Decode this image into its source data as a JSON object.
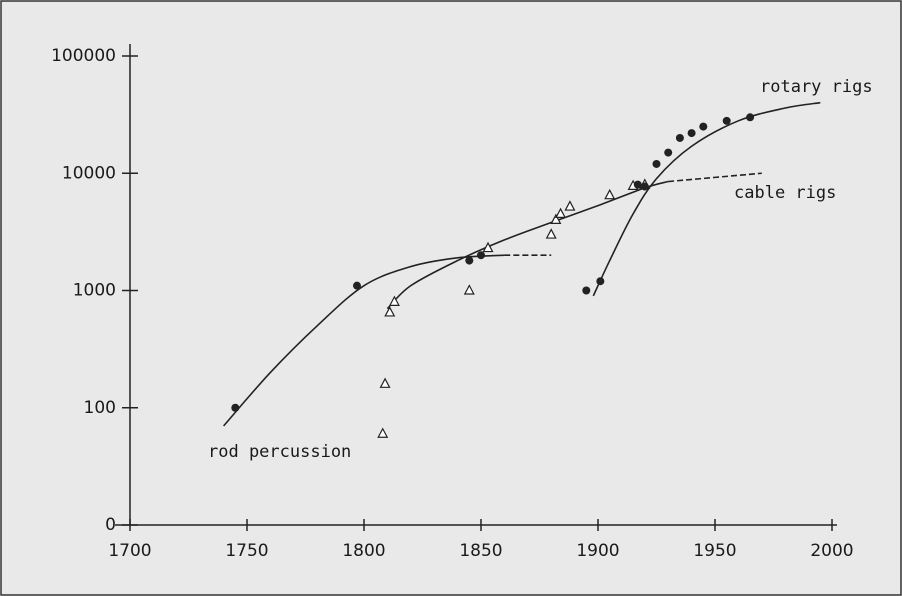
{
  "chart_data": {
    "type": "scatter",
    "xlim": [
      1700,
      2000
    ],
    "xticks": [
      1700,
      1750,
      1800,
      1850,
      1900,
      1950,
      2000
    ],
    "ylim": [
      10,
      100000
    ],
    "log_y": true,
    "yticks": [
      {
        "value": 10,
        "label": "0"
      },
      100,
      1000,
      10000,
      100000
    ],
    "series": [
      {
        "name": "rod percussion",
        "color": "#222222",
        "marker": "circle",
        "x": [
          1745,
          1797,
          1845,
          1850
        ],
        "values": [
          100,
          1100,
          1800,
          2000
        ],
        "curve_x": [
          1740,
          1760,
          1780,
          1800,
          1820,
          1840,
          1860
        ],
        "curve_values": [
          70,
          200,
          500,
          1100,
          1600,
          1900,
          2000
        ],
        "extension_x": [
          1860,
          1880
        ],
        "extension_values": [
          2000,
          2000
        ]
      },
      {
        "name": "cable rigs",
        "color": "#222222",
        "marker": "triangle",
        "x": [
          1808,
          1809,
          1811,
          1813,
          1845,
          1853,
          1880,
          1882,
          1884,
          1888,
          1905,
          1915,
          1920
        ],
        "values": [
          60,
          160,
          650,
          800,
          1000,
          2300,
          3000,
          4000,
          4500,
          5200,
          6500,
          7800,
          8000
        ],
        "curve_x": [
          1810,
          1820,
          1840,
          1860,
          1880,
          1900,
          1920,
          1930
        ],
        "curve_values": [
          700,
          1100,
          1800,
          2700,
          3800,
          5300,
          7500,
          8500
        ],
        "extension_x": [
          1930,
          1970
        ],
        "extension_values": [
          8500,
          10000
        ]
      },
      {
        "name": "rotary rigs",
        "color": "#222222",
        "marker": "circle",
        "x": [
          1895,
          1901,
          1917,
          1920,
          1925,
          1930,
          1935,
          1940,
          1945,
          1955,
          1965
        ],
        "values": [
          1000,
          1200,
          8000,
          7700,
          12000,
          15000,
          20000,
          22000,
          25000,
          28000,
          30000
        ],
        "curve_x": [
          1898,
          1905,
          1915,
          1925,
          1940,
          1960,
          1980,
          1995
        ],
        "curve_values": [
          900,
          1800,
          4500,
          9000,
          17000,
          28000,
          36000,
          40000
        ]
      }
    ]
  }
}
